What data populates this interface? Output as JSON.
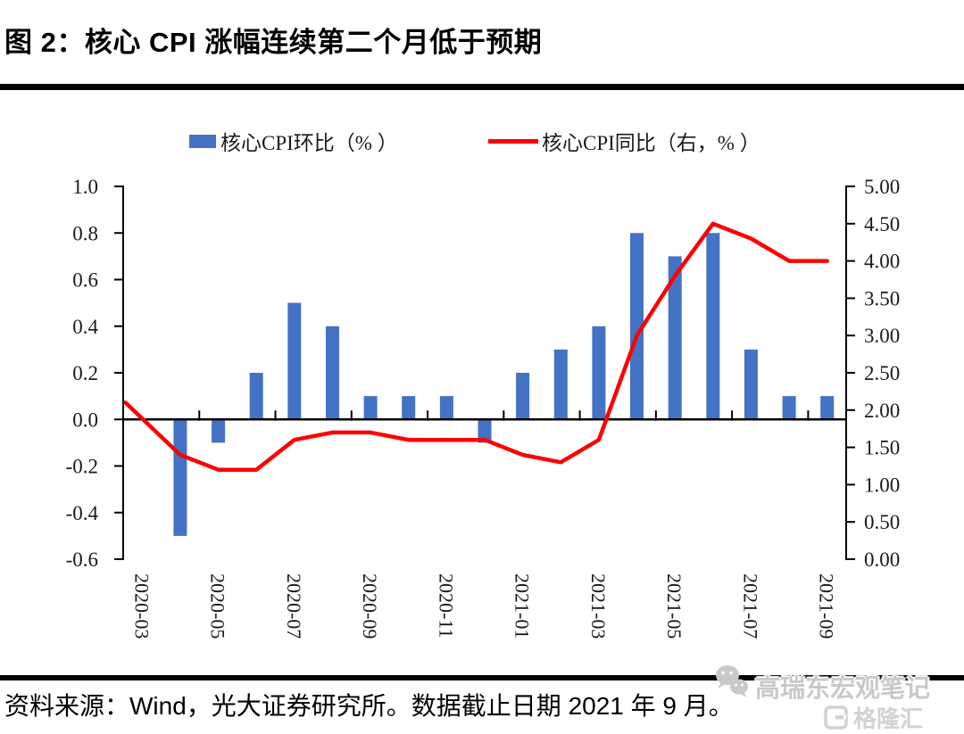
{
  "title": "图 2：核心 CPI 涨幅连续第二个月低于预期",
  "footer": {
    "source_text": "资料来源：Wind，光大证券研究所。数据截止日期 2021 年 9 月。"
  },
  "watermark": {
    "account_name": "高瑞东宏观笔记",
    "platform_name": "格隆汇",
    "color": "#c9c9c9"
  },
  "colors": {
    "bar": "#4472C4",
    "line": "#FF0000",
    "axis_line": "#000000",
    "axis_text": "#1a1a1a",
    "divider": "#000000"
  },
  "chart_data": {
    "type": "bar+line",
    "title": "",
    "legend_position": "top",
    "grid": "none",
    "categories": [
      "2020-03",
      "2020-04",
      "2020-05",
      "2020-06",
      "2020-07",
      "2020-08",
      "2020-09",
      "2020-10",
      "2020-11",
      "2020-12",
      "2021-01",
      "2021-02",
      "2021-03",
      "2021-04",
      "2021-05",
      "2021-06",
      "2021-07",
      "2021-08",
      "2021-09"
    ],
    "x_axis_labels": [
      "2020-03",
      "2020-05",
      "2020-07",
      "2020-09",
      "2020-11",
      "2021-01",
      "2021-03",
      "2021-05",
      "2021-07",
      "2021-09"
    ],
    "series": [
      {
        "name": "核心CPI环比（% ）",
        "type": "bar",
        "axis": "left",
        "color": "#4472C4",
        "values": [
          0.0,
          -0.5,
          -0.1,
          0.2,
          0.5,
          0.4,
          0.1,
          0.1,
          0.1,
          -0.1,
          0.2,
          0.3,
          0.4,
          0.8,
          0.7,
          0.8,
          0.3,
          0.1,
          0.1
        ]
      },
      {
        "name": "核心CPI同比（右，% ）",
        "type": "line",
        "axis": "right",
        "color": "#FF0000",
        "values": [
          2.1,
          1.4,
          1.2,
          1.2,
          1.6,
          1.7,
          1.7,
          1.6,
          1.6,
          1.6,
          1.4,
          1.3,
          1.6,
          3.0,
          3.8,
          4.5,
          4.3,
          4.0,
          4.0
        ]
      }
    ],
    "left_axis": {
      "min": -0.6,
      "max": 1.0,
      "step": 0.2,
      "tick_labels": [
        "1.0",
        "0.8",
        "0.6",
        "0.4",
        "0.2",
        "0.0",
        "-0.2",
        "-0.4",
        "-0.6"
      ]
    },
    "right_axis": {
      "min": 0.0,
      "max": 5.0,
      "step": 0.5,
      "tick_labels": [
        "5.00",
        "4.50",
        "4.00",
        "3.50",
        "3.00",
        "2.50",
        "2.00",
        "1.50",
        "1.00",
        "0.50",
        "0.00"
      ]
    }
  }
}
